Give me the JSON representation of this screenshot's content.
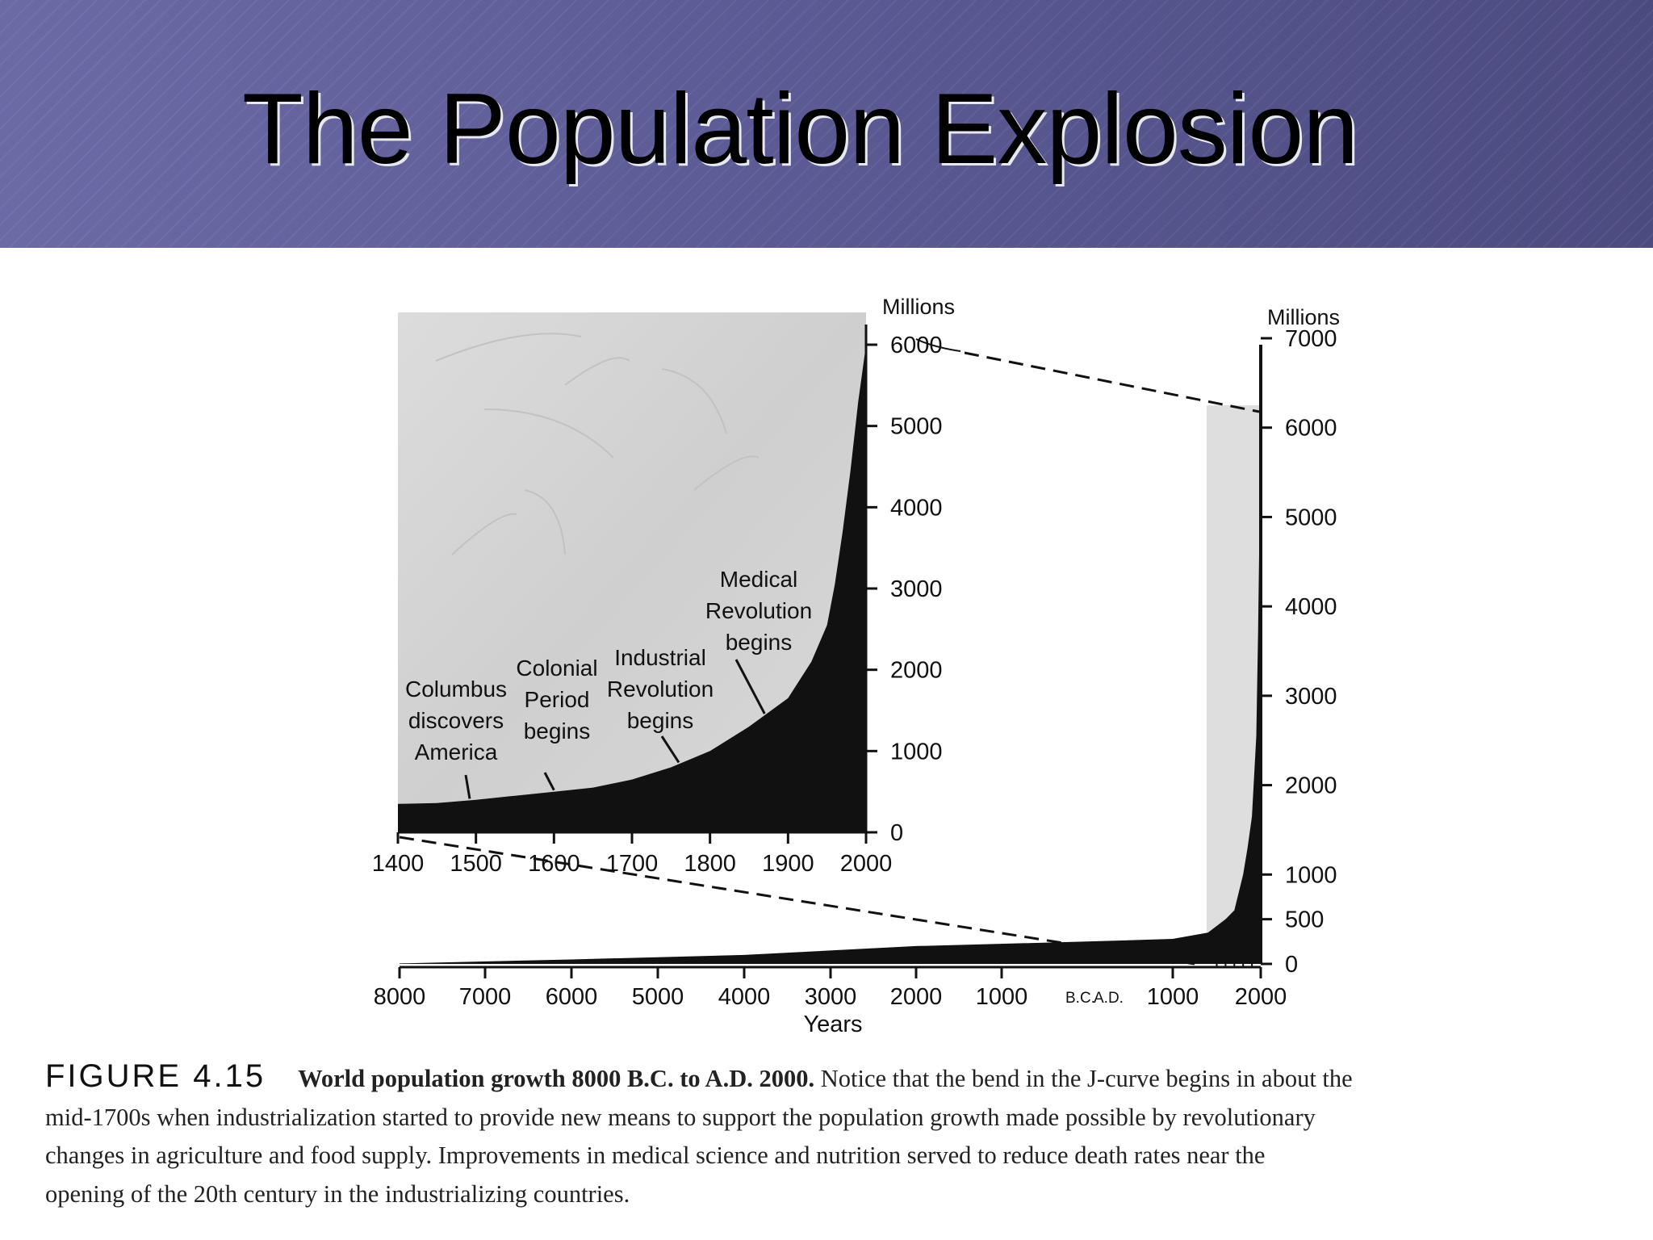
{
  "slide": {
    "title": "The Population Explosion"
  },
  "chart_data": [
    {
      "type": "area",
      "name": "inset",
      "xlim": [
        1400,
        2000
      ],
      "ylim": [
        0,
        6000
      ],
      "y_axis_label": "Millions",
      "x_ticks": [
        1400,
        1500,
        1600,
        1700,
        1800,
        1900,
        2000
      ],
      "y_ticks": [
        0,
        1000,
        2000,
        3000,
        4000,
        5000,
        6000
      ],
      "x": [
        1400,
        1450,
        1500,
        1550,
        1600,
        1650,
        1700,
        1750,
        1800,
        1850,
        1900,
        1930,
        1950,
        1960,
        1970,
        1980,
        1990,
        2000
      ],
      "y": [
        350,
        360,
        400,
        450,
        500,
        550,
        650,
        800,
        1000,
        1300,
        1650,
        2100,
        2550,
        3050,
        3700,
        4450,
        5300,
        6000
      ],
      "annotations": [
        {
          "lines": [
            "Columbus",
            "discovers",
            "America"
          ],
          "x": 1492
        },
        {
          "lines": [
            "Colonial",
            "Period",
            "begins"
          ],
          "x": 1600
        },
        {
          "lines": [
            "Industrial",
            "Revolution",
            "begins"
          ],
          "x": 1760
        },
        {
          "lines": [
            "Medical",
            "Revolution",
            "begins"
          ],
          "x": 1870
        }
      ]
    },
    {
      "type": "area",
      "name": "main",
      "xlim": [
        -8000,
        2000
      ],
      "ylim": [
        0,
        7000
      ],
      "y_axis_label": "Millions",
      "x_axis_label": "Years",
      "x_ticks": [
        -8000,
        -7000,
        -6000,
        -5000,
        -4000,
        -3000,
        -2000,
        -1000,
        1000,
        2000
      ],
      "x_tick_labels": [
        "8000",
        "7000",
        "6000",
        "5000",
        "4000",
        "3000",
        "2000",
        "1000",
        "1000",
        "2000"
      ],
      "era_label": {
        "before": "B.C.",
        "after": "A.D."
      },
      "y_ticks": [
        0,
        500,
        1000,
        2000,
        3000,
        4000,
        5000,
        6000,
        7000
      ],
      "x": [
        -8000,
        -6000,
        -4000,
        -2000,
        0,
        1000,
        1400,
        1600,
        1700,
        1800,
        1850,
        1900,
        1950,
        1970,
        1985,
        2000
      ],
      "y": [
        5,
        50,
        100,
        200,
        250,
        280,
        350,
        500,
        600,
        1000,
        1300,
        1650,
        2550,
        3700,
        4850,
        6200
      ]
    }
  ],
  "caption": {
    "figure_label": "FIGURE 4.15",
    "bold_text": "World population growth 8000 B.C. to A.D. 2000.",
    "text_line_1": "Notice that the bend in the J-curve begins in about the",
    "text_line_2": "mid-1700s when industrialization started to provide new means to support the population growth made possible by revolutionary",
    "text_line_3": "changes in agriculture and food supply. Improvements in medical science and nutrition served to reduce death rates near the",
    "text_line_4": "opening of the 20th century in the industrializing countries."
  }
}
